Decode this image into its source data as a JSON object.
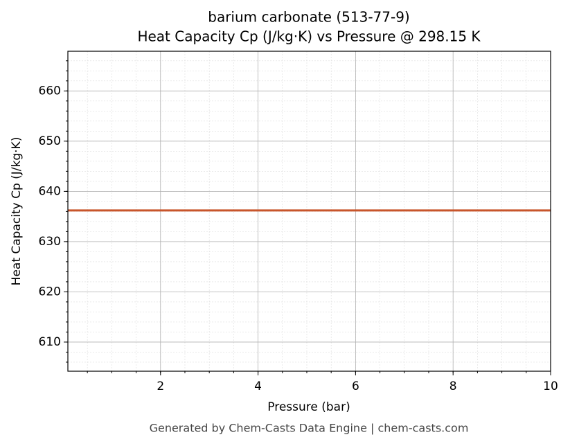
{
  "chart_data": {
    "type": "line",
    "title": "barium carbonate (513-77-9)",
    "subtitle": "Heat Capacity Cp (J/kg·K) vs Pressure @ 298.15 K",
    "x_label": "Pressure (bar)",
    "y_label": "Heat Capacity Cp (J/kg·K)",
    "footer": "Generated by Chem-Casts Data Engine | chem-casts.com",
    "x": [
      0.1,
      10
    ],
    "series": [
      {
        "color": "#c8552b",
        "values": [
          636.2,
          636.2
        ]
      }
    ],
    "xlim": [
      0.1,
      10
    ],
    "xticks": [
      2,
      4,
      6,
      8,
      10
    ],
    "ylim": [
      604.2,
      667.9
    ],
    "yticks": [
      610,
      620,
      630,
      640,
      650,
      660
    ],
    "grid": true,
    "minor_grid": true
  }
}
